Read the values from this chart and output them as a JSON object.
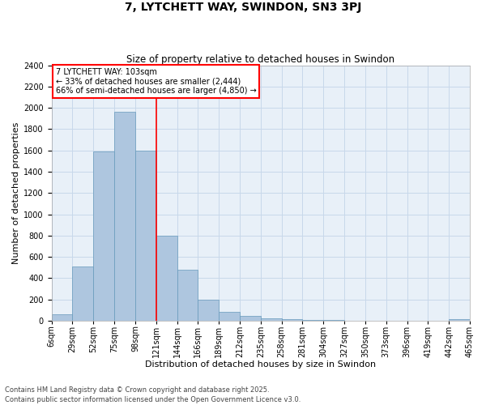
{
  "title": "7, LYTCHETT WAY, SWINDON, SN3 3PJ",
  "subtitle": "Size of property relative to detached houses in Swindon",
  "xlabel": "Distribution of detached houses by size in Swindon",
  "ylabel": "Number of detached properties",
  "categories": [
    "6sqm",
    "29sqm",
    "52sqm",
    "75sqm",
    "98sqm",
    "121sqm",
    "144sqm",
    "166sqm",
    "189sqm",
    "212sqm",
    "235sqm",
    "258sqm",
    "281sqm",
    "304sqm",
    "327sqm",
    "350sqm",
    "373sqm",
    "396sqm",
    "419sqm",
    "442sqm",
    "465sqm"
  ],
  "values": [
    60,
    510,
    1590,
    1960,
    1600,
    800,
    480,
    195,
    85,
    45,
    25,
    15,
    8,
    5,
    3,
    2,
    1,
    1,
    0,
    15
  ],
  "bar_color": "#aec6df",
  "bar_edge_color": "#6699bb",
  "vline_color": "red",
  "vline_position": 4.5,
  "annotation_text": "7 LYTCHETT WAY: 103sqm\n← 33% of detached houses are smaller (2,444)\n66% of semi-detached houses are larger (4,850) →",
  "annotation_box_color": "red",
  "ylim": [
    0,
    2400
  ],
  "yticks": [
    0,
    200,
    400,
    600,
    800,
    1000,
    1200,
    1400,
    1600,
    1800,
    2000,
    2200,
    2400
  ],
  "grid_color": "#c8d8ea",
  "bg_color": "#e8f0f8",
  "footer": "Contains HM Land Registry data © Crown copyright and database right 2025.\nContains public sector information licensed under the Open Government Licence v3.0.",
  "title_fontsize": 10,
  "subtitle_fontsize": 8.5,
  "axis_label_fontsize": 8,
  "tick_fontsize": 7,
  "annotation_fontsize": 7,
  "footer_fontsize": 6
}
